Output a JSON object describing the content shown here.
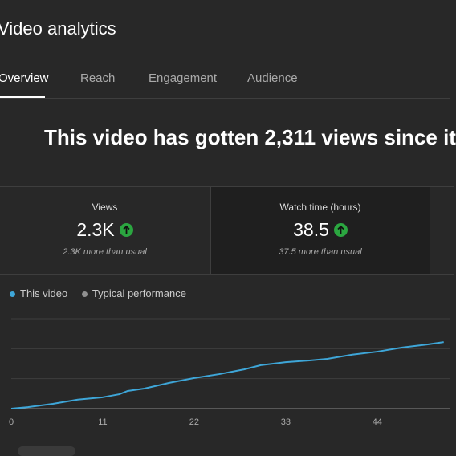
{
  "header": {
    "title": "Video analytics"
  },
  "tabs": [
    "Overview",
    "Reach",
    "Engagement",
    "Audience"
  ],
  "headline": "This video has gotten 2,311 views since it",
  "metrics": [
    {
      "label": "Views",
      "value": "2.3K",
      "note": "2.3K more than usual"
    },
    {
      "label": "Watch time (hours)",
      "value": "38.5",
      "note": "37.5 more than usual"
    }
  ],
  "chart_data": {
    "type": "line",
    "x": [
      0,
      2,
      5,
      8,
      11,
      13,
      14,
      16,
      19,
      22,
      25,
      28,
      30,
      33,
      36,
      38,
      41,
      44,
      47,
      50,
      52
    ],
    "series": [
      {
        "name": "This video",
        "color": "#3ea6d8",
        "values": [
          0,
          0.05,
          0.16,
          0.3,
          0.38,
          0.48,
          0.59,
          0.67,
          0.86,
          1.02,
          1.15,
          1.31,
          1.45,
          1.55,
          1.61,
          1.66,
          1.8,
          1.9,
          2.04,
          2.14,
          2.22
        ]
      },
      {
        "name": "Typical performance",
        "color": "#909090"
      }
    ],
    "xlim": [
      0,
      53
    ],
    "xticks": [
      0,
      11,
      22,
      33,
      44
    ],
    "ylim": [
      0,
      3
    ],
    "ygrid": [
      0,
      1,
      2,
      3
    ],
    "grid": true
  }
}
